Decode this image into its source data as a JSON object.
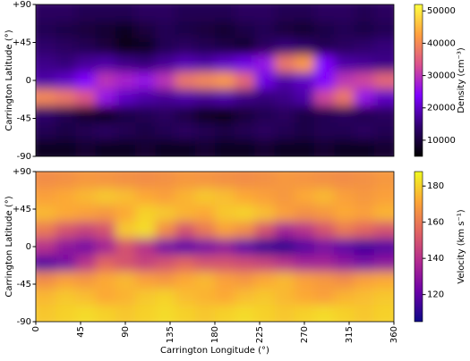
{
  "chart_data": [
    {
      "type": "heatmap",
      "ylabel": "Carrington Latitude (°)",
      "x": [
        10,
        30,
        50,
        70,
        90,
        110,
        130,
        150,
        170,
        190,
        210,
        230,
        250,
        270,
        290,
        310,
        330,
        350
      ],
      "y": [
        80,
        60,
        40,
        20,
        0,
        -20,
        -40,
        -60,
        -80
      ],
      "values": [
        [
          13000,
          13000,
          12000,
          12000,
          12000,
          13000,
          13000,
          12000,
          12000,
          12000,
          13000,
          13000,
          12000,
          12000,
          13000,
          13000,
          12000,
          13000
        ],
        [
          12000,
          11000,
          10000,
          9000,
          8000,
          10000,
          12000,
          11000,
          10000,
          9000,
          11000,
          12000,
          10000,
          9000,
          11000,
          12000,
          11000,
          12000
        ],
        [
          14000,
          13000,
          12000,
          10000,
          7000,
          8000,
          12000,
          13000,
          12000,
          11000,
          9000,
          13000,
          15000,
          14000,
          12000,
          13000,
          14000,
          15000
        ],
        [
          16000,
          15000,
          17000,
          18000,
          16000,
          15000,
          17000,
          19000,
          18000,
          20000,
          22000,
          26000,
          38000,
          42000,
          24000,
          18000,
          17000,
          16000
        ],
        [
          18000,
          20000,
          24000,
          30000,
          28000,
          26000,
          30000,
          38000,
          40000,
          42000,
          36000,
          22000,
          18000,
          20000,
          24000,
          30000,
          32000,
          36000
        ],
        [
          40000,
          38000,
          34000,
          26000,
          20000,
          18000,
          17000,
          18000,
          17000,
          18000,
          16000,
          15000,
          16000,
          18000,
          32000,
          38000,
          26000,
          20000
        ],
        [
          14000,
          12000,
          9000,
          8000,
          11000,
          12000,
          13000,
          11000,
          8000,
          7000,
          10000,
          12000,
          13000,
          11000,
          12000,
          13000,
          12000,
          13000
        ],
        [
          12000,
          11000,
          12000,
          13000,
          12000,
          11000,
          12000,
          13000,
          12000,
          11000,
          12000,
          13000,
          12000,
          11000,
          12000,
          12000,
          13000,
          12000
        ],
        [
          8000,
          8000,
          9000,
          8000,
          8000,
          9000,
          8000,
          8000,
          9000,
          8000,
          8000,
          9000,
          8000,
          8000,
          9000,
          8000,
          8000,
          9000
        ]
      ],
      "xlim": [
        0,
        360
      ],
      "ylim": [
        -90,
        90
      ],
      "yticks": [
        {
          "value": 90,
          "label": "+90"
        },
        {
          "value": 45,
          "label": "+45"
        },
        0,
        -45,
        -90
      ],
      "colorbar": {
        "label": "Density (cm⁻³)",
        "lim": [
          5000,
          52000
        ],
        "ticks": [
          10000,
          20000,
          30000,
          40000,
          50000
        ]
      },
      "colorscale": [
        "#000000",
        "#300070",
        "#7f00ff",
        "#d9508f",
        "#ff9f40",
        "#ffff40"
      ]
    },
    {
      "type": "heatmap",
      "ylabel": "Carrington Latitude (°)",
      "xlabel": "Carrington Longitude (°)",
      "x": [
        10,
        30,
        50,
        70,
        90,
        110,
        130,
        150,
        170,
        190,
        210,
        230,
        250,
        270,
        290,
        310,
        330,
        350
      ],
      "y": [
        80,
        60,
        40,
        20,
        0,
        -20,
        -40,
        -60,
        -80
      ],
      "values": [
        [
          165,
          166,
          168,
          167,
          166,
          165,
          166,
          168,
          167,
          166,
          165,
          166,
          168,
          167,
          166,
          165,
          166,
          168
        ],
        [
          170,
          172,
          175,
          178,
          176,
          172,
          170,
          174,
          178,
          176,
          172,
          170,
          168,
          172,
          175,
          170,
          168,
          170
        ],
        [
          175,
          172,
          170,
          168,
          172,
          180,
          178,
          174,
          172,
          178,
          180,
          176,
          170,
          166,
          168,
          172,
          170,
          174
        ],
        [
          160,
          150,
          145,
          150,
          178,
          182,
          165,
          150,
          160,
          170,
          165,
          150,
          135,
          140,
          150,
          160,
          155,
          150
        ],
        [
          140,
          130,
          125,
          135,
          150,
          140,
          125,
          120,
          125,
          130,
          120,
          112,
          110,
          118,
          125,
          120,
          115,
          118
        ],
        [
          118,
          125,
          140,
          155,
          150,
          145,
          150,
          155,
          150,
          150,
          148,
          145,
          140,
          135,
          135,
          130,
          125,
          130
        ],
        [
          165,
          170,
          168,
          172,
          175,
          170,
          168,
          172,
          175,
          170,
          168,
          172,
          175,
          170,
          168,
          165,
          170,
          172
        ],
        [
          175,
          178,
          176,
          172,
          174,
          178,
          180,
          176,
          174,
          172,
          176,
          178,
          175,
          172,
          170,
          174,
          176,
          178
        ],
        [
          178,
          180,
          182,
          180,
          178,
          180,
          182,
          180,
          178,
          180,
          182,
          180,
          178,
          180,
          182,
          180,
          178,
          180
        ]
      ],
      "xlim": [
        0,
        360
      ],
      "ylim": [
        -90,
        90
      ],
      "xticks": [
        0,
        45,
        90,
        135,
        180,
        225,
        270,
        315,
        360
      ],
      "yticks": [
        {
          "value": 90,
          "label": "+90"
        },
        {
          "value": 45,
          "label": "+45"
        },
        0,
        -45,
        -90
      ],
      "colorbar": {
        "label": "Velocity (km s⁻¹)",
        "lim": [
          105,
          188
        ],
        "ticks": [
          120,
          140,
          160,
          180
        ]
      },
      "colorscale": [
        "#0d0887",
        "#6a00a8",
        "#b12a90",
        "#e16462",
        "#fca636",
        "#f0f921"
      ]
    }
  ]
}
